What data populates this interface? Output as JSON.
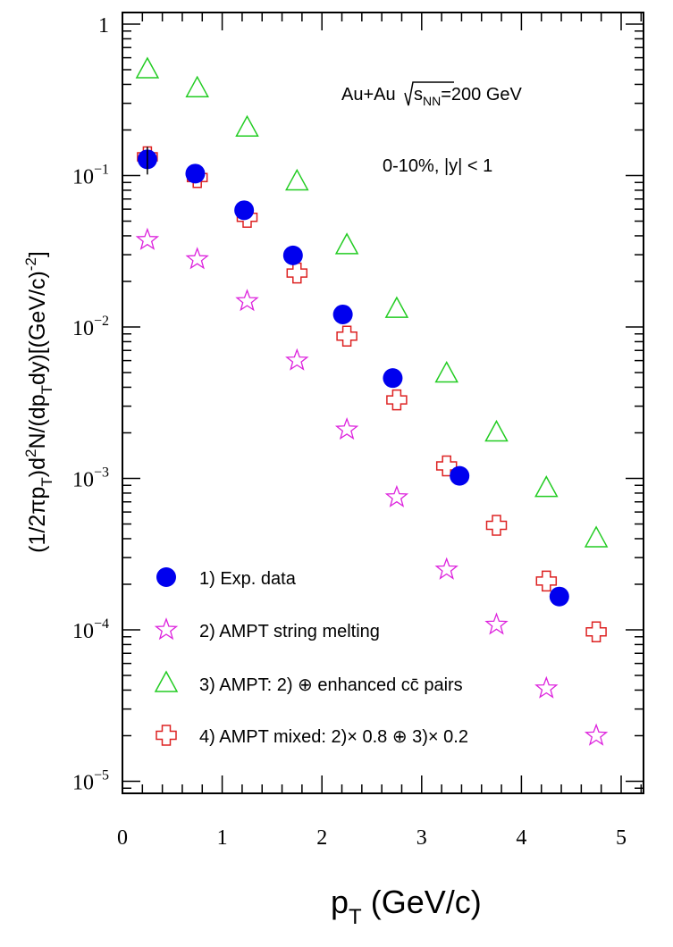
{
  "chart_data": {
    "type": "scatter",
    "title": "",
    "xlabel": "p_T (GeV/c)",
    "ylabel": "(1/2πp_T)d²N/(dp_T dy)[(GeV/c)⁻²]",
    "xlim": [
      0,
      5.2
    ],
    "ylim": [
      1e-05,
      1.2
    ],
    "yscale": "log",
    "grid": false,
    "legend_placement": "bottom-left",
    "x_ticks": [
      "0",
      "1",
      "2",
      "3",
      "4",
      "5"
    ],
    "y_ticks": [
      {
        "base": "1",
        "exp": ""
      },
      {
        "base": "10",
        "exp": "−1"
      },
      {
        "base": "10",
        "exp": "−2"
      },
      {
        "base": "10",
        "exp": "−3"
      },
      {
        "base": "10",
        "exp": "−4"
      },
      {
        "base": "10",
        "exp": "−5"
      }
    ],
    "annotations": {
      "system": "Au+Au",
      "sqrt_s": "s",
      "sqrt_s_sub": "NN",
      "energy": "=200 GeV",
      "centrality": "0-10%, ",
      "rapidity": "|y| < 1"
    },
    "series": [
      {
        "name": "1) Exp. data",
        "marker": "filled-circle",
        "color": "#0000ee",
        "x": [
          0.25,
          0.73,
          1.22,
          1.71,
          2.21,
          2.71,
          3.38,
          4.38
        ],
        "y": [
          0.128,
          0.103,
          0.059,
          0.0297,
          0.0121,
          0.0046,
          0.00104,
          0.000166
        ]
      },
      {
        "name": "2) AMPT string melting",
        "marker": "open-star",
        "color": "#dd22dd",
        "x": [
          0.25,
          0.75,
          1.25,
          1.75,
          2.25,
          2.75,
          3.25,
          3.75,
          4.25,
          4.75
        ],
        "y": [
          0.0375,
          0.028,
          0.0148,
          0.006,
          0.0021,
          0.00075,
          0.00025,
          0.000108,
          4.1e-05,
          2e-05
        ]
      },
      {
        "name": "3) AMPT: 2) ⊕ enhanced cc̄ pairs",
        "marker": "open-triangle",
        "color": "#22cc22",
        "x": [
          0.25,
          0.75,
          1.25,
          1.75,
          2.25,
          2.75,
          3.25,
          3.75,
          4.25,
          4.75
        ],
        "y": [
          0.5,
          0.375,
          0.206,
          0.091,
          0.0345,
          0.0131,
          0.0049,
          0.002,
          0.00086,
          0.0004
        ]
      },
      {
        "name": "4) AMPT mixed: 2)× 0.8 ⊕ 3)× 0.2",
        "marker": "open-cross",
        "color": "#dd2222",
        "x": [
          0.25,
          0.75,
          1.25,
          1.75,
          2.25,
          2.75,
          3.25,
          3.75,
          4.25,
          4.75
        ],
        "y": [
          0.133,
          0.097,
          0.053,
          0.0227,
          0.0087,
          0.0033,
          0.00121,
          0.00049,
          0.00021,
          9.7e-05
        ]
      }
    ]
  }
}
